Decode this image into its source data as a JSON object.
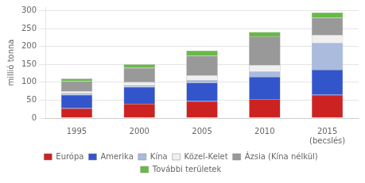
{
  "chart_data": {
    "type": "bar",
    "stacked": true,
    "categories": [
      "1995",
      "2000",
      "2005",
      "2010",
      "2015\n(becslés)"
    ],
    "series": [
      {
        "name": "Európa",
        "color": "#cc2222",
        "values": [
          27,
          40,
          47,
          53,
          65
        ]
      },
      {
        "name": "Amerika",
        "color": "#3355cc",
        "values": [
          38,
          47,
          52,
          62,
          70
        ]
      },
      {
        "name": "Kína",
        "color": "#aabbdd",
        "values": [
          5,
          5,
          8,
          15,
          75
        ]
      },
      {
        "name": "Közel-Kelet",
        "color": "#f0f0f0",
        "values": [
          5,
          8,
          12,
          18,
          22
        ]
      },
      {
        "name": "Ázsia (Kína nélkül)",
        "color": "#999999",
        "values": [
          28,
          40,
          55,
          80,
          48
        ]
      },
      {
        "name": "További területek",
        "color": "#66bb44",
        "values": [
          7,
          10,
          14,
          12,
          15
        ]
      }
    ],
    "ylabel": "millió tonna",
    "ylim": [
      0,
      310
    ],
    "yticks": [
      0,
      50,
      100,
      150,
      200,
      250,
      300
    ],
    "grid": true,
    "legend": "bottom"
  }
}
